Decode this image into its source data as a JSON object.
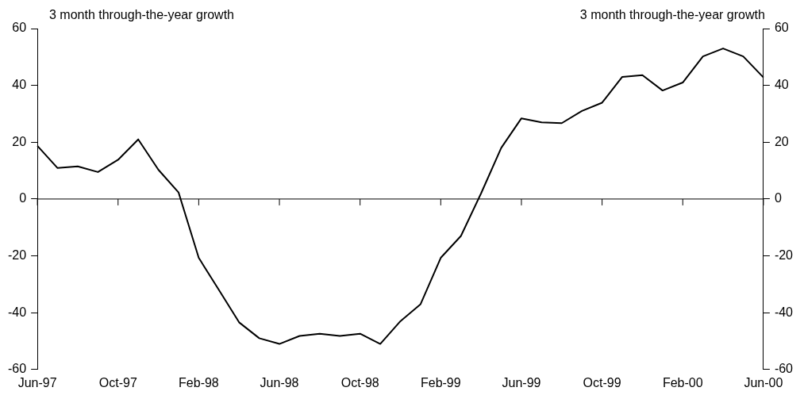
{
  "chart_data": {
    "type": "line",
    "ylabel": "3 month through-the-year growth",
    "y2label": "3 month through-the-year growth",
    "categories": [
      "Jun-97",
      null,
      null,
      null,
      "Oct-97",
      null,
      null,
      null,
      "Feb-98",
      null,
      null,
      null,
      "Jun-98",
      null,
      null,
      null,
      "Oct-98",
      null,
      null,
      null,
      "Feb-99",
      null,
      null,
      null,
      "Jun-99",
      null,
      null,
      null,
      "Oct-99",
      null,
      null,
      null,
      "Feb-00",
      null,
      null,
      null,
      "Jun-00"
    ],
    "series": [
      {
        "color": "#000000",
        "values": [
          18.7,
          10.9,
          11.5,
          9.5,
          13.8,
          21,
          10.3,
          2.3,
          -20.7,
          -32,
          -43.4,
          -49,
          -51,
          -48.2,
          -47.4,
          -48.2,
          -47.4,
          -51,
          -43,
          -37,
          -20.7,
          -13,
          2,
          18,
          28.4,
          27,
          26.7,
          31,
          33.9,
          43,
          43.6,
          38.2,
          41,
          50.2,
          53,
          50.2,
          42.8
        ]
      }
    ],
    "ylim": [
      -60,
      60
    ],
    "yticks": [
      -60,
      -40,
      -20,
      0,
      20,
      40,
      60
    ],
    "y2lim": [
      -60,
      60
    ],
    "y2ticks": [
      -60,
      -40,
      -20,
      0,
      20,
      40,
      60
    ],
    "ref_lines": [
      {
        "axis": "y",
        "value": 0,
        "color": "#000000"
      }
    ],
    "grid": false,
    "legend": false,
    "marker": "none",
    "line_style": "solid"
  }
}
